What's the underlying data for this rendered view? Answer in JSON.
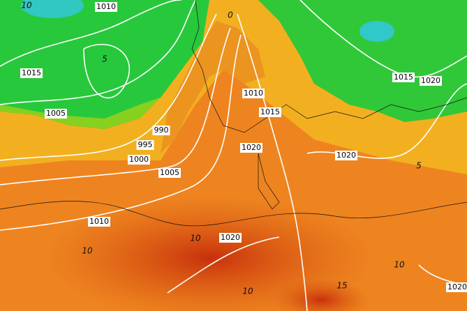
{
  "isobar_labels": [
    "1010",
    "1015",
    "1005",
    "990",
    "995",
    "1000",
    "1005",
    "1010",
    "1015",
    "1020",
    "1020",
    "1015",
    "1020",
    "1010",
    "1020",
    "1020"
  ],
  "isotherm_labels": [
    "10",
    "5",
    "0",
    "10",
    "10",
    "10",
    "15",
    "5",
    "10"
  ]
}
